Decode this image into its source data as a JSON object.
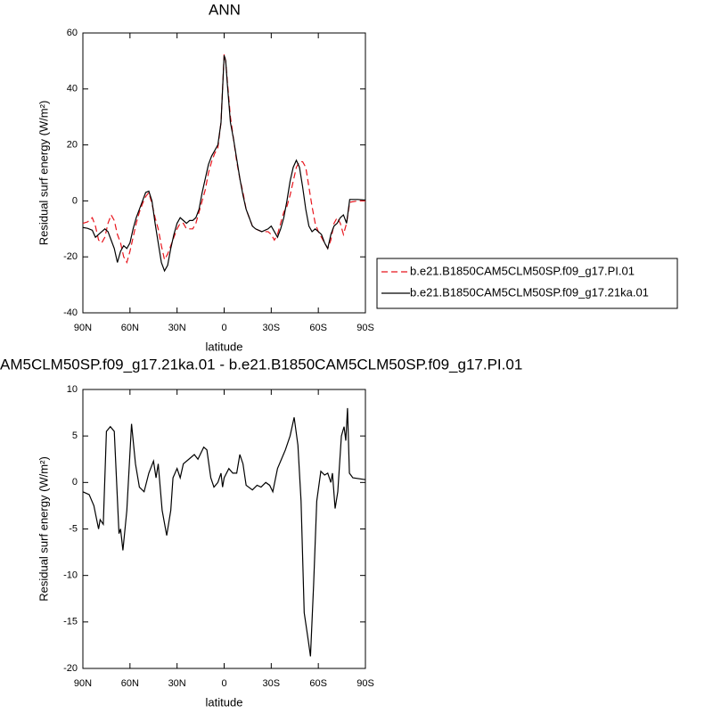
{
  "chart_data": [
    {
      "type": "line",
      "title": "ANN",
      "xlabel": "latitude",
      "ylabel": "Residual surf energy (W/m²)",
      "xlim": [
        90,
        -90
      ],
      "ylim": [
        -40,
        60
      ],
      "xticks": [
        {
          "value": 90,
          "label": "90N"
        },
        {
          "value": 60,
          "label": "60N"
        },
        {
          "value": 30,
          "label": "30N"
        },
        0,
        {
          "value": -30,
          "label": "30S"
        },
        {
          "value": -60,
          "label": "60S"
        },
        {
          "value": -90,
          "label": "90S"
        }
      ],
      "yticks": [
        -40,
        -20,
        0,
        20,
        40,
        60
      ],
      "legend": "right",
      "x": [
        90,
        87,
        84,
        82,
        80,
        78,
        76,
        74,
        72,
        70,
        68,
        66,
        64,
        62,
        60,
        58,
        56,
        54,
        52,
        50,
        48,
        46,
        44,
        42,
        40,
        38,
        36,
        34,
        32,
        30,
        28,
        26,
        24,
        22,
        20,
        18,
        16,
        14,
        12,
        10,
        8,
        6,
        4,
        2,
        1,
        0,
        -1,
        -2,
        -4,
        -6,
        -8,
        -10,
        -12,
        -14,
        -16,
        -18,
        -20,
        -24,
        -28,
        -30,
        -32,
        -34,
        -36,
        -38,
        -40,
        -42,
        -44,
        -46,
        -48,
        -50,
        -52,
        -54,
        -56,
        -58,
        -60,
        -62,
        -64,
        -66,
        -68,
        -70,
        -72,
        -74,
        -76,
        -78,
        -80,
        -85,
        -90
      ],
      "series": [
        {
          "name": "b.e21.B1850CAM5CLM50SP.f09_g17.PI.01",
          "color": "#e8141c",
          "dash": "dashed",
          "values": [
            -8,
            -7.5,
            -6,
            -9,
            -14,
            -15,
            -13,
            -8,
            -5,
            -7,
            -12,
            -15,
            -20,
            -22,
            -18,
            -13,
            -8,
            -4,
            -1,
            1.5,
            3,
            -1,
            -6,
            -10,
            -16,
            -21,
            -19,
            -16,
            -13,
            -10,
            -8,
            -8,
            -10,
            -10,
            -10,
            -8,
            -4,
            0,
            4,
            10,
            14,
            17,
            19,
            28,
            40,
            52.5,
            50,
            43,
            30,
            22,
            14,
            8,
            3,
            -3,
            -6,
            -9,
            -10,
            -11,
            -11,
            -12,
            -14,
            -12,
            -8,
            -4,
            -2,
            2,
            7,
            12,
            14,
            14,
            12,
            5,
            -2,
            -8,
            -11,
            -13,
            -15,
            -17,
            -14,
            -8,
            -6,
            -8,
            -12,
            -8,
            -0.5,
            0,
            0
          ]
        },
        {
          "name": "b.e21.B1850CAM5CLM50SP.f09_g17.21ka.01",
          "color": "#000000",
          "dash": "solid",
          "values": [
            -9.5,
            -9.8,
            -10.5,
            -13,
            -12,
            -11,
            -10,
            -11,
            -14,
            -17,
            -22,
            -18,
            -16,
            -17,
            -15,
            -10,
            -6,
            -3,
            0,
            3,
            3.5,
            0,
            -8,
            -15,
            -22,
            -25,
            -23,
            -17,
            -12,
            -8,
            -6,
            -7,
            -8,
            -7,
            -7,
            -6,
            -3,
            3,
            8,
            13,
            16,
            18,
            20,
            28,
            40,
            52,
            50,
            42,
            28,
            22,
            15,
            8,
            2,
            -3,
            -6,
            -9,
            -10,
            -11,
            -10,
            -9,
            -11,
            -13,
            -10,
            -6,
            0,
            7,
            12,
            14.5,
            12,
            5,
            -3,
            -9,
            -11,
            -10,
            -11,
            -12,
            -15,
            -17,
            -12,
            -9,
            -8,
            -6,
            -5,
            -8,
            0.5,
            0.5,
            0.3
          ]
        }
      ]
    },
    {
      "type": "line",
      "title": "AM5CLM50SP.f09_g17.21ka.01 - b.e21.B1850CAM5CLM50SP.f09_g17.PI.01",
      "xlabel": "latitude",
      "ylabel": "Residual surf energy (W/m²)",
      "xlim": [
        90,
        -90
      ],
      "ylim": [
        -20,
        10
      ],
      "xticks": [
        {
          "value": 90,
          "label": "90N"
        },
        {
          "value": 60,
          "label": "60N"
        },
        {
          "value": 30,
          "label": "30N"
        },
        0,
        {
          "value": -30,
          "label": "30S"
        },
        {
          "value": -60,
          "label": "60S"
        },
        {
          "value": -90,
          "label": "90S"
        }
      ],
      "yticks": [
        -20,
        -15,
        -10,
        -5,
        0,
        5,
        10
      ],
      "x": [
        90,
        86,
        83,
        80,
        79,
        77,
        75,
        72.5,
        70,
        67,
        66,
        64.5,
        62,
        59,
        56.5,
        54,
        51,
        48,
        45,
        43.4,
        42,
        39.5,
        36.6,
        34,
        32.6,
        30,
        28,
        26,
        22.5,
        19,
        16.7,
        13,
        11,
        8.5,
        6.5,
        4,
        2,
        1,
        0,
        -3,
        -5.5,
        -8,
        -10,
        -12,
        -14,
        -18,
        -21,
        -23.5,
        -26.5,
        -29,
        -31,
        -34,
        -39,
        -42,
        -44.6,
        -47,
        -49,
        -51,
        -53.6,
        -55,
        -57,
        -59,
        -61.6,
        -64,
        -66,
        -68,
        -69,
        -70.7,
        -72.4,
        -74.7,
        -76.4,
        -77.5,
        -78.6,
        -79.8,
        -82,
        -90
      ],
      "series": [
        {
          "color": "#000000",
          "dash": "solid",
          "values": [
            -1,
            -1.3,
            -2.5,
            -5,
            -4,
            -4.5,
            5.5,
            6,
            5.5,
            -5.5,
            -5,
            -7.3,
            -3,
            6.3,
            2,
            -0.5,
            -1,
            1,
            2.3,
            0.5,
            2,
            -3,
            -5.7,
            -3,
            0.5,
            1.5,
            0.5,
            2,
            2.5,
            3,
            2.5,
            3.8,
            3.5,
            0.5,
            -0.5,
            0,
            1,
            -0.5,
            0.5,
            1.5,
            1,
            1,
            3,
            2,
            -0.3,
            -0.8,
            -0.3,
            -0.5,
            0,
            -0.3,
            -1,
            1.5,
            3.5,
            5,
            7,
            4,
            -2,
            -14,
            -17,
            -18.7,
            -11,
            -2,
            1.2,
            0.8,
            1,
            0,
            1,
            -2.8,
            -1,
            5,
            6,
            4.5,
            8,
            1,
            0.5,
            0.3
          ]
        }
      ]
    }
  ]
}
